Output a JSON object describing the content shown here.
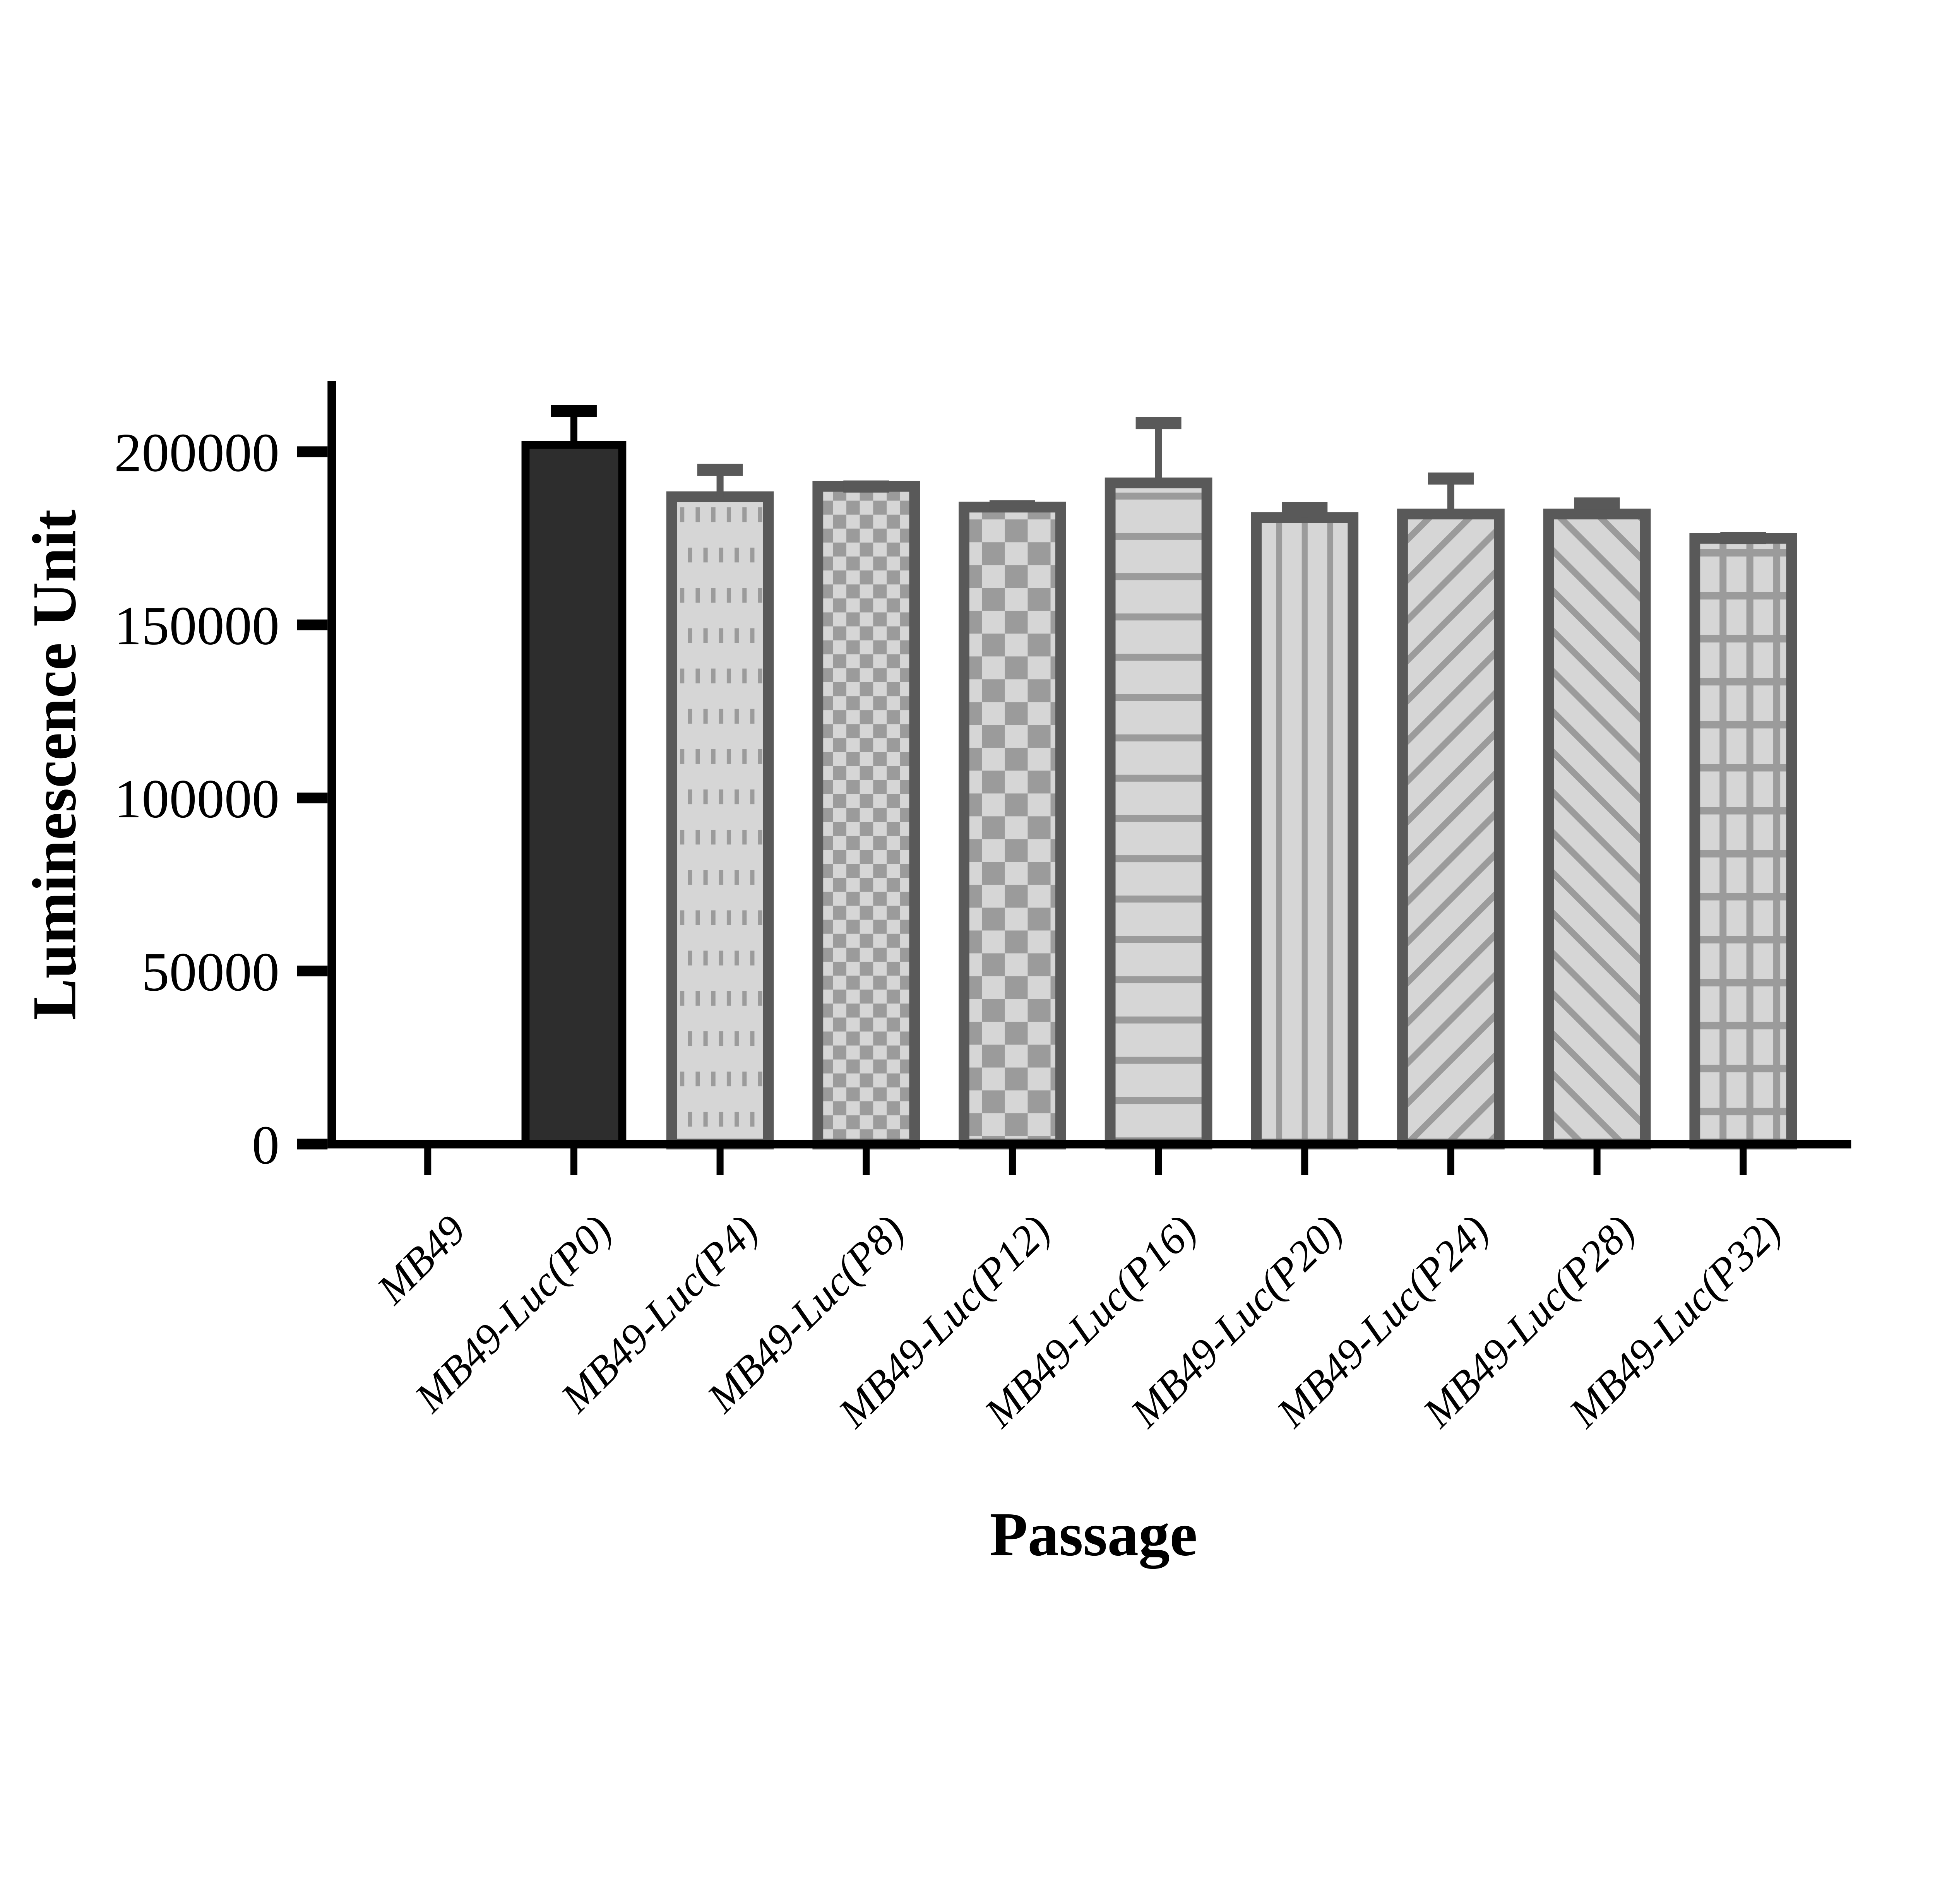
{
  "chart_data": {
    "type": "bar",
    "title": "",
    "xlabel": "Passage",
    "ylabel": "Luminescence Unit",
    "ylim": [
      0,
      220000
    ],
    "ytick_values": [
      0,
      50000,
      100000,
      150000,
      200000
    ],
    "ytick_labels": [
      "0",
      "50000",
      "100000",
      "150000",
      "200000"
    ],
    "grid": false,
    "legend_position": "none",
    "categories": [
      "MB49",
      "MB49-Luc(P0)",
      "MB49-Luc(P4)",
      "MB49-Luc(P8)",
      "MB49-Luc(P12)",
      "MB49-Luc(P16)",
      "MB49-Luc(P20)",
      "MB49-Luc(P24)",
      "MB49-Luc(P28)",
      "MB49-Luc(P32)"
    ],
    "values": [
      0,
      202000,
      187000,
      190000,
      184000,
      191000,
      181000,
      182000,
      182000,
      175000
    ],
    "errors_plus": [
      0,
      11500,
      9500,
      1700,
      2000,
      19000,
      4500,
      12000,
      4800,
      1800
    ],
    "bar_patterns": [
      "none",
      "solid-dark",
      "dotted",
      "checker-fine",
      "checker-coarse",
      "hlines",
      "vlines",
      "diag-up",
      "diag-down",
      "grid"
    ],
    "colors": {
      "axis": "#000000",
      "dark_bar_fill": "#2d2d2d",
      "dark_bar_border": "#000000",
      "pattern_background": "#d6d6d6",
      "pattern_ink": "#9b9b9b",
      "pattern_border": "#595959"
    }
  }
}
